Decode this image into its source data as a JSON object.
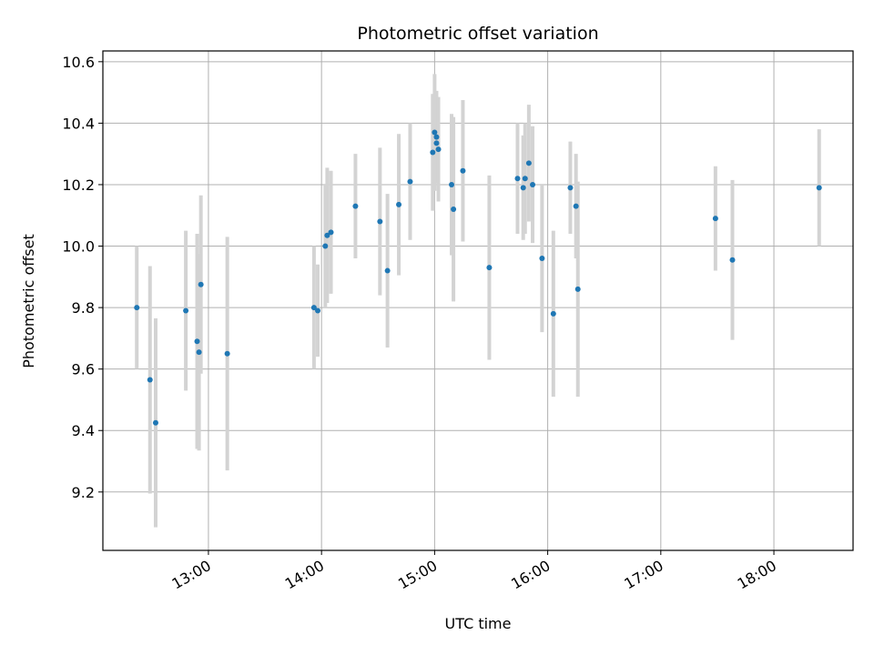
{
  "chart_data": {
    "type": "scatter",
    "title": "Photometric offset variation",
    "xlabel": "UTC time",
    "ylabel": "Photometric offset",
    "x_axis_kind": "time",
    "xlim": [
      "12:04",
      "18:42"
    ],
    "ylim": [
      9.01,
      10.635
    ],
    "x_ticks": [
      "13:00",
      "14:00",
      "15:00",
      "16:00",
      "17:00",
      "18:00"
    ],
    "y_ticks": [
      9.2,
      9.4,
      9.6,
      9.8,
      10.0,
      10.2,
      10.4,
      10.6
    ],
    "grid": true,
    "legend": "none",
    "colors": {
      "point": "#1f77b4",
      "errorbar": "#d3d3d3",
      "grid": "#b0b0b0"
    },
    "series": [
      {
        "points": [
          {
            "x": "12:22",
            "y": 9.8,
            "err": 0.2
          },
          {
            "x": "12:29",
            "y": 9.565,
            "err": 0.37
          },
          {
            "x": "12:32",
            "y": 9.425,
            "err": 0.34
          },
          {
            "x": "12:48",
            "y": 9.79,
            "err": 0.26
          },
          {
            "x": "12:54",
            "y": 9.69,
            "err": 0.35
          },
          {
            "x": "12:55",
            "y": 9.655,
            "err": 0.32
          },
          {
            "x": "12:56",
            "y": 9.875,
            "err": 0.29
          },
          {
            "x": "13:10",
            "y": 9.65,
            "err": 0.38
          },
          {
            "x": "13:56",
            "y": 9.8,
            "err": 0.2
          },
          {
            "x": "13:58",
            "y": 9.79,
            "err": 0.15
          },
          {
            "x": "14:02",
            "y": 10.0,
            "err": 0.2
          },
          {
            "x": "14:03",
            "y": 10.035,
            "err": 0.22
          },
          {
            "x": "14:05",
            "y": 10.045,
            "err": 0.2
          },
          {
            "x": "14:18",
            "y": 10.13,
            "err": 0.17
          },
          {
            "x": "14:31",
            "y": 10.08,
            "err": 0.24
          },
          {
            "x": "14:35",
            "y": 9.92,
            "err": 0.25
          },
          {
            "x": "14:41",
            "y": 10.135,
            "err": 0.23
          },
          {
            "x": "14:47",
            "y": 10.21,
            "err": 0.19
          },
          {
            "x": "14:59",
            "y": 10.305,
            "err": 0.19
          },
          {
            "x": "15:00",
            "y": 10.37,
            "err": 0.19
          },
          {
            "x": "15:01",
            "y": 10.355,
            "err": 0.15
          },
          {
            "x": "15:01",
            "y": 10.335,
            "err": 0.13
          },
          {
            "x": "15:02",
            "y": 10.315,
            "err": 0.17
          },
          {
            "x": "15:09",
            "y": 10.2,
            "err": 0.23
          },
          {
            "x": "15:10",
            "y": 10.12,
            "err": 0.3
          },
          {
            "x": "15:15",
            "y": 10.245,
            "err": 0.23
          },
          {
            "x": "15:29",
            "y": 9.93,
            "err": 0.3
          },
          {
            "x": "15:44",
            "y": 10.22,
            "err": 0.18
          },
          {
            "x": "15:47",
            "y": 10.19,
            "err": 0.17
          },
          {
            "x": "15:48",
            "y": 10.22,
            "err": 0.18
          },
          {
            "x": "15:50",
            "y": 10.27,
            "err": 0.19
          },
          {
            "x": "15:52",
            "y": 10.2,
            "err": 0.19
          },
          {
            "x": "15:57",
            "y": 9.96,
            "err": 0.24
          },
          {
            "x": "16:03",
            "y": 9.78,
            "err": 0.27
          },
          {
            "x": "16:12",
            "y": 10.19,
            "err": 0.15
          },
          {
            "x": "16:15",
            "y": 10.13,
            "err": 0.17
          },
          {
            "x": "16:16",
            "y": 9.86,
            "err": 0.35
          },
          {
            "x": "17:29",
            "y": 10.09,
            "err": 0.17
          },
          {
            "x": "17:38",
            "y": 9.955,
            "err": 0.26
          },
          {
            "x": "18:24",
            "y": 10.19,
            "err": 0.19
          }
        ]
      }
    ]
  }
}
